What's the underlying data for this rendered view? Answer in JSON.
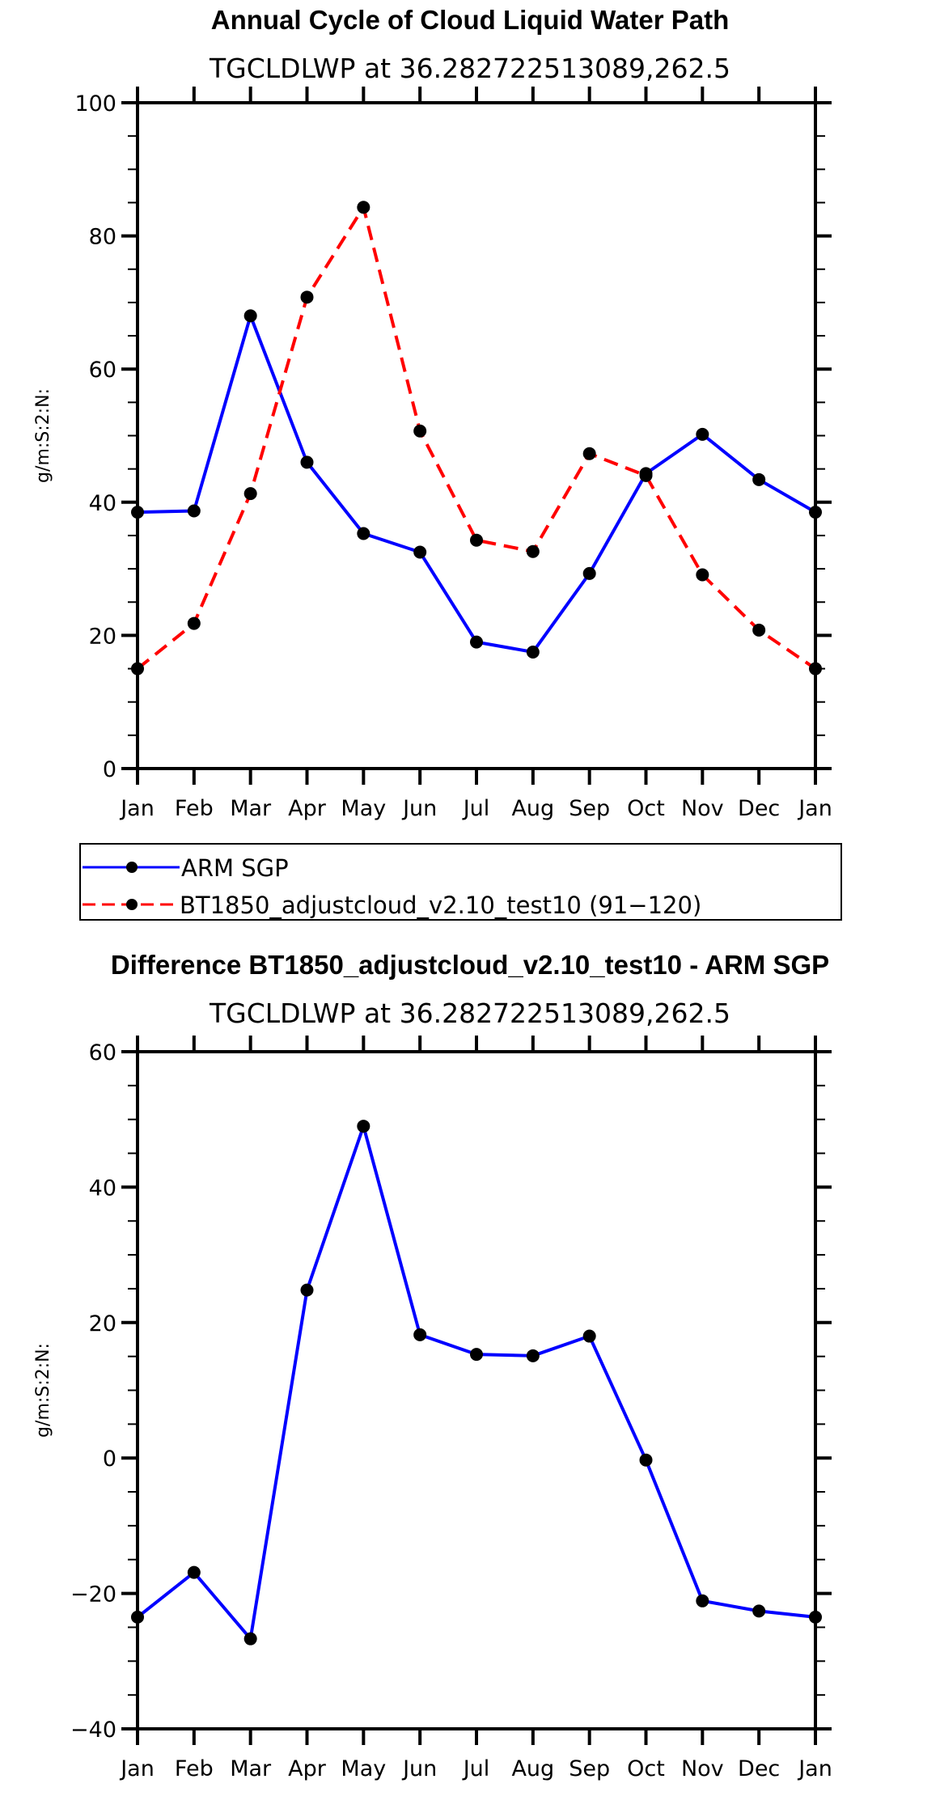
{
  "chart_data": [
    {
      "type": "line",
      "title": "Annual Cycle of Cloud Liquid Water Path",
      "subtitle": "TGCLDLWP at 36.282722513089,262.5",
      "xlabel": "",
      "ylabel": "g/m:S:2:N:",
      "categories": [
        "Jan",
        "Feb",
        "Mar",
        "Apr",
        "May",
        "Jun",
        "Jul",
        "Aug",
        "Sep",
        "Oct",
        "Nov",
        "Dec",
        "Jan"
      ],
      "ylim": [
        0,
        100
      ],
      "yticks": [
        0,
        20,
        40,
        60,
        80,
        100
      ],
      "yminor": 5,
      "legend_position": "below",
      "series": [
        {
          "name": "ARM SGP",
          "color": "#0000ff",
          "dash": false,
          "values": [
            38.5,
            38.7,
            68.0,
            46.0,
            35.3,
            32.5,
            19.0,
            17.5,
            29.3,
            44.3,
            50.2,
            43.4,
            38.5
          ]
        },
        {
          "name": "BT1850_adjustcloud_v2.10_test10 (91−120)",
          "color": "#ff0000",
          "dash": true,
          "values": [
            15.0,
            21.8,
            41.3,
            70.8,
            84.3,
            50.7,
            34.3,
            32.6,
            47.3,
            44.0,
            29.1,
            20.8,
            15.0
          ]
        }
      ]
    },
    {
      "type": "line",
      "title": "Difference BT1850_adjustcloud_v2.10_test10 - ARM SGP",
      "subtitle": "TGCLDLWP at 36.282722513089,262.5",
      "xlabel": "",
      "ylabel": "g/m:S:2:N:",
      "categories": [
        "Jan",
        "Feb",
        "Mar",
        "Apr",
        "May",
        "Jun",
        "Jul",
        "Aug",
        "Sep",
        "Oct",
        "Nov",
        "Dec",
        "Jan"
      ],
      "ylim": [
        -40,
        60
      ],
      "yticks": [
        -40,
        -20,
        0,
        20,
        40,
        60
      ],
      "ytick_labels": [
        "−40",
        "−20",
        "0",
        "20",
        "40",
        "60"
      ],
      "yminor": 5,
      "series": [
        {
          "name": "Difference",
          "color": "#0000ff",
          "dash": false,
          "values": [
            -23.5,
            -16.9,
            -26.7,
            24.8,
            49.0,
            18.2,
            15.3,
            15.1,
            18.0,
            -0.3,
            -21.1,
            -22.6,
            -23.5
          ]
        }
      ]
    }
  ]
}
